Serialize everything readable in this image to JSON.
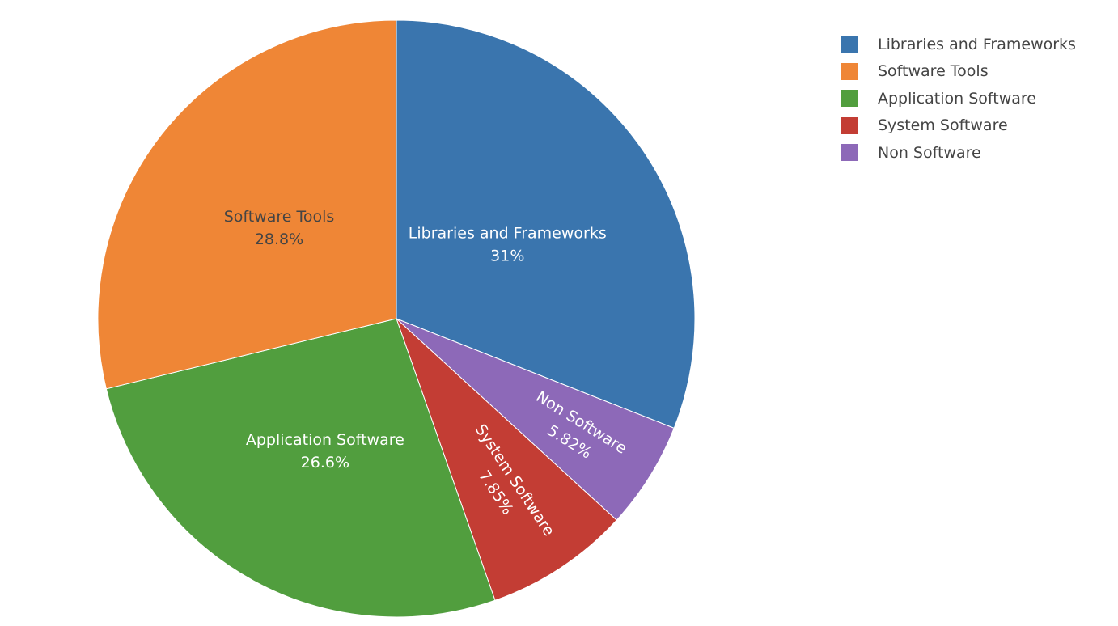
{
  "chart_data": {
    "type": "pie",
    "title": "",
    "slices": [
      {
        "label": "Libraries and Frameworks",
        "value": 31.0,
        "display": "31%",
        "color": "#3a75ae",
        "text_color": "#ffffff"
      },
      {
        "label": "Non Software",
        "value": 5.82,
        "display": "5.82%",
        "color": "#8d69b8",
        "text_color": "#ffffff"
      },
      {
        "label": "System Software",
        "value": 7.85,
        "display": "7.85%",
        "color": "#c33d34",
        "text_color": "#ffffff"
      },
      {
        "label": "Application Software",
        "value": 26.6,
        "display": "26.6%",
        "color": "#519e3e",
        "text_color": "#ffffff"
      },
      {
        "label": "Software Tools",
        "value": 28.8,
        "display": "28.8%",
        "color": "#ef8636",
        "text_color": "#444444"
      }
    ],
    "legend": {
      "placement": "top-right",
      "entries": [
        {
          "label": "Libraries and Frameworks",
          "color": "#3a75ae"
        },
        {
          "label": "Software Tools",
          "color": "#ef8636"
        },
        {
          "label": "Application Software",
          "color": "#519e3e"
        },
        {
          "label": "System Software",
          "color": "#c33d34"
        },
        {
          "label": "Non Software",
          "color": "#8d69b8"
        }
      ]
    }
  }
}
